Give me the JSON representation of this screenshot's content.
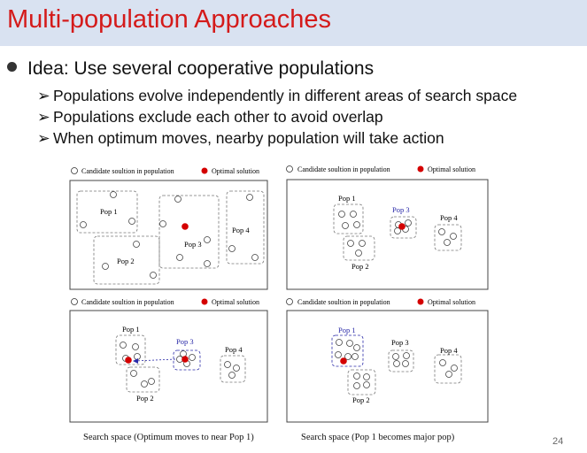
{
  "slide": {
    "title": "Multi-population Approaches",
    "bullet": "Idea: Use several cooperative populations",
    "sub_bullets": [
      "Populations evolve independently in different areas of search space",
      "Populations exclude each other to avoid overlap",
      "When optimum moves, nearby population will take action"
    ],
    "page_number": "24"
  },
  "legend": {
    "candidate": "Candidate soultion in population",
    "optimal": "Optimal solution"
  },
  "panels": [
    {
      "pops": [
        {
          "label": "Pop 1"
        },
        {
          "label": "Pop 2"
        },
        {
          "label": "Pop 3"
        },
        {
          "label": "Pop 4"
        }
      ]
    },
    {
      "pops": [
        {
          "label": "Pop 1"
        },
        {
          "label": "Pop 2"
        },
        {
          "label": "Pop 3"
        },
        {
          "label": "Pop 4"
        }
      ]
    },
    {
      "pops": [
        {
          "label": "Pop 1"
        },
        {
          "label": "Pop 2"
        },
        {
          "label": "Pop 3"
        },
        {
          "label": "Pop 4"
        }
      ]
    },
    {
      "pops": [
        {
          "label": "Pop 1"
        },
        {
          "label": "Pop 2"
        },
        {
          "label": "Pop 3"
        },
        {
          "label": "Pop 4"
        }
      ]
    }
  ],
  "captions": [
    "Search space (Optimum moves to near Pop 1)",
    "Search space (Pop 1 becomes major pop)"
  ],
  "colors": {
    "title": "#d41a1a",
    "title_bg": "#d9e2f1",
    "optimal": "#d40000",
    "active_pop": "#2a2aa8"
  }
}
